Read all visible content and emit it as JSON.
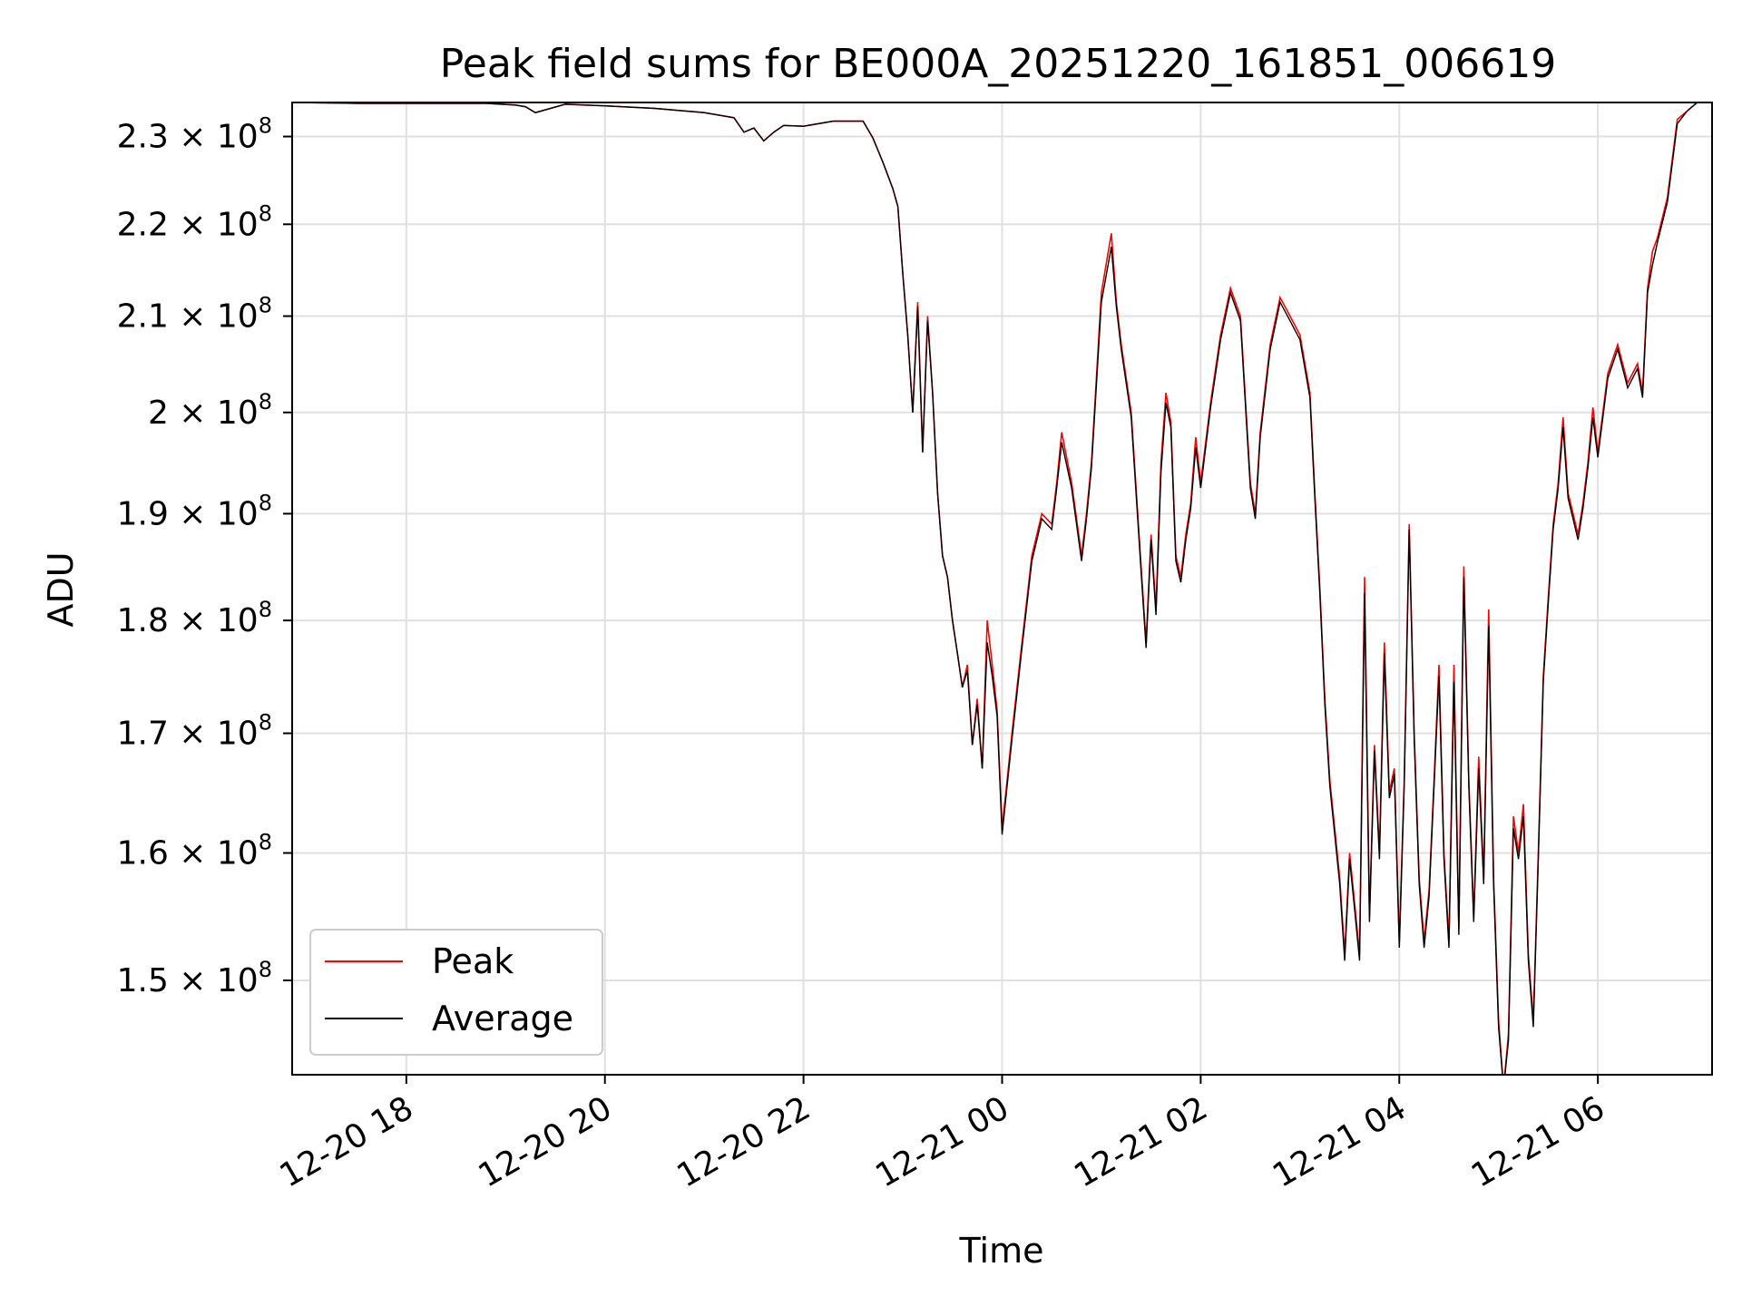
{
  "chart_data": {
    "type": "line",
    "title": "Peak field sums for BE000A_20251220_161851_006619",
    "xlabel": "Time",
    "ylabel": "ADU",
    "yscale": "log",
    "grid": true,
    "legend_position": "lower-left",
    "colors": {
      "peak": "#ff0000",
      "average": "#000000",
      "grid": "#e0e0e0"
    },
    "xlim": [
      16.85,
      31.15
    ],
    "ylim": [
      143000000,
      234000000
    ],
    "x_ticks": [
      {
        "value": 18,
        "label": "12-20 18"
      },
      {
        "value": 20,
        "label": "12-20 20"
      },
      {
        "value": 22,
        "label": "12-20 22"
      },
      {
        "value": 24,
        "label": "12-21 00"
      },
      {
        "value": 26,
        "label": "12-21 02"
      },
      {
        "value": 28,
        "label": "12-21 04"
      },
      {
        "value": 30,
        "label": "12-21 06"
      }
    ],
    "y_ticks": [
      {
        "value": 150000000,
        "mantissa": "1.5",
        "exp": "8"
      },
      {
        "value": 160000000,
        "mantissa": "1.6",
        "exp": "8"
      },
      {
        "value": 170000000,
        "mantissa": "1.7",
        "exp": "8"
      },
      {
        "value": 180000000,
        "mantissa": "1.8",
        "exp": "8"
      },
      {
        "value": 190000000,
        "mantissa": "1.9",
        "exp": "8"
      },
      {
        "value": 200000000,
        "mantissa": "2",
        "exp": "8"
      },
      {
        "value": 210000000,
        "mantissa": "2.1",
        "exp": "8"
      },
      {
        "value": 220000000,
        "mantissa": "2.2",
        "exp": "8"
      },
      {
        "value": 230000000,
        "mantissa": "2.3",
        "exp": "8"
      }
    ],
    "x_units": "hours since 2025-12-20 00:00",
    "series": [
      {
        "name": "Peak",
        "x": [
          16.85,
          17.5,
          18.2,
          18.8,
          19.1,
          19.2,
          19.3,
          19.6,
          20.0,
          20.5,
          21.0,
          21.3,
          21.4,
          21.5,
          21.6,
          21.7,
          21.8,
          22.0,
          22.3,
          22.6,
          22.7,
          22.8,
          22.9,
          22.95,
          23.0,
          23.05,
          23.1,
          23.15,
          23.2,
          23.25,
          23.3,
          23.35,
          23.4,
          23.45,
          23.5,
          23.55,
          23.6,
          23.65,
          23.7,
          23.75,
          23.8,
          23.85,
          23.9,
          23.95,
          24.0,
          24.05,
          24.1,
          24.2,
          24.3,
          24.4,
          24.5,
          24.55,
          24.6,
          24.7,
          24.8,
          24.85,
          24.9,
          25.0,
          25.1,
          25.15,
          25.2,
          25.3,
          25.4,
          25.45,
          25.5,
          25.55,
          25.6,
          25.65,
          25.7,
          25.75,
          25.8,
          25.85,
          25.9,
          25.95,
          26.0,
          26.1,
          26.2,
          26.3,
          26.4,
          26.5,
          26.55,
          26.6,
          26.7,
          26.8,
          26.9,
          27.0,
          27.1,
          27.15,
          27.2,
          27.25,
          27.3,
          27.35,
          27.4,
          27.45,
          27.5,
          27.55,
          27.6,
          27.65,
          27.7,
          27.75,
          27.8,
          27.85,
          27.9,
          27.95,
          28.0,
          28.05,
          28.1,
          28.15,
          28.2,
          28.25,
          28.3,
          28.35,
          28.4,
          28.45,
          28.5,
          28.55,
          28.6,
          28.65,
          28.7,
          28.75,
          28.8,
          28.85,
          28.9,
          28.95,
          29.0,
          29.05,
          29.1,
          29.15,
          29.2,
          29.25,
          29.3,
          29.35,
          29.4,
          29.45,
          29.5,
          29.55,
          29.6,
          29.65,
          29.7,
          29.75,
          29.8,
          29.85,
          29.9,
          29.95,
          30.0,
          30.1,
          30.2,
          30.3,
          30.4,
          30.45,
          30.5,
          30.55,
          30.6,
          30.7,
          30.8,
          30.9,
          31.0,
          31.15
        ],
        "values": [
          234000000,
          233900000,
          233900000,
          233900000,
          233700000,
          233500000,
          232800000,
          233800000,
          233600000,
          233300000,
          232800000,
          232200000,
          230500000,
          231000000,
          229500000,
          230500000,
          231300000,
          231200000,
          231800000,
          231800000,
          229800000,
          227000000,
          224000000,
          222000000,
          214500000,
          208000000,
          200000000,
          211500000,
          196000000,
          210000000,
          202000000,
          192000000,
          186000000,
          184000000,
          180000000,
          177000000,
          174000000,
          176000000,
          169000000,
          173000000,
          167000000,
          180000000,
          176000000,
          172000000,
          162000000,
          166000000,
          170000000,
          178000000,
          186000000,
          190000000,
          189000000,
          193000000,
          198000000,
          193000000,
          186000000,
          190000000,
          195000000,
          212500000,
          219000000,
          211500000,
          207000000,
          200000000,
          185000000,
          178000000,
          188000000,
          181000000,
          195000000,
          202000000,
          199000000,
          186000000,
          184000000,
          188000000,
          191000000,
          197500000,
          193000000,
          201000000,
          208000000,
          213000000,
          210000000,
          193000000,
          190000000,
          198000000,
          207000000,
          212000000,
          210000000,
          208000000,
          202000000,
          192000000,
          183000000,
          173000000,
          166000000,
          162000000,
          158000000,
          152000000,
          160000000,
          156000000,
          152000000,
          184000000,
          155000000,
          169000000,
          160000000,
          178000000,
          165000000,
          167000000,
          153000000,
          166000000,
          189000000,
          170000000,
          158000000,
          153000000,
          157000000,
          166000000,
          176000000,
          160000000,
          153000000,
          176000000,
          154000000,
          185000000,
          166000000,
          155000000,
          168000000,
          158000000,
          181000000,
          158000000,
          147000000,
          142000000,
          146000000,
          163000000,
          160000000,
          164000000,
          152000000,
          147000000,
          160000000,
          175000000,
          182000000,
          189000000,
          193000000,
          199500000,
          192000000,
          190000000,
          188000000,
          191000000,
          195000000,
          200500000,
          196000000,
          204000000,
          207000000,
          203000000,
          205000000,
          202000000,
          213000000,
          217000000,
          218500000,
          223000000,
          232000000,
          233000000,
          234000000,
          235000000
        ]
      },
      {
        "name": "Average",
        "x": [
          16.85,
          17.5,
          18.2,
          18.8,
          19.1,
          19.2,
          19.3,
          19.6,
          20.0,
          20.5,
          21.0,
          21.3,
          21.4,
          21.5,
          21.6,
          21.7,
          21.8,
          22.0,
          22.3,
          22.6,
          22.7,
          22.8,
          22.9,
          22.95,
          23.0,
          23.05,
          23.1,
          23.15,
          23.2,
          23.25,
          23.3,
          23.35,
          23.4,
          23.45,
          23.5,
          23.55,
          23.6,
          23.65,
          23.7,
          23.75,
          23.8,
          23.85,
          23.9,
          23.95,
          24.0,
          24.05,
          24.1,
          24.2,
          24.3,
          24.4,
          24.5,
          24.55,
          24.6,
          24.7,
          24.8,
          24.85,
          24.9,
          25.0,
          25.1,
          25.15,
          25.2,
          25.3,
          25.4,
          25.45,
          25.5,
          25.55,
          25.6,
          25.65,
          25.7,
          25.75,
          25.8,
          25.85,
          25.9,
          25.95,
          26.0,
          26.1,
          26.2,
          26.3,
          26.4,
          26.5,
          26.55,
          26.6,
          26.7,
          26.8,
          26.9,
          27.0,
          27.1,
          27.15,
          27.2,
          27.25,
          27.3,
          27.35,
          27.4,
          27.45,
          27.5,
          27.55,
          27.6,
          27.65,
          27.7,
          27.75,
          27.8,
          27.85,
          27.9,
          27.95,
          28.0,
          28.05,
          28.1,
          28.15,
          28.2,
          28.25,
          28.3,
          28.35,
          28.4,
          28.45,
          28.5,
          28.55,
          28.6,
          28.65,
          28.7,
          28.75,
          28.8,
          28.85,
          28.9,
          28.95,
          29.0,
          29.05,
          29.1,
          29.15,
          29.2,
          29.25,
          29.3,
          29.35,
          29.4,
          29.45,
          29.5,
          29.55,
          29.6,
          29.65,
          29.7,
          29.75,
          29.8,
          29.85,
          29.9,
          29.95,
          30.0,
          30.1,
          30.2,
          30.3,
          30.4,
          30.45,
          30.5,
          30.55,
          30.6,
          30.7,
          30.8,
          30.9,
          31.0,
          31.15
        ],
        "values": [
          234000000,
          233900000,
          233900000,
          233900000,
          233700000,
          233500000,
          232800000,
          233800000,
          233600000,
          233300000,
          232800000,
          232200000,
          230500000,
          231000000,
          229500000,
          230500000,
          231300000,
          231200000,
          231800000,
          231800000,
          229800000,
          227000000,
          224000000,
          222000000,
          214500000,
          208000000,
          200000000,
          211000000,
          196000000,
          209500000,
          202000000,
          192000000,
          186000000,
          184000000,
          180000000,
          177000000,
          174000000,
          175500000,
          169000000,
          172500000,
          167000000,
          178000000,
          175000000,
          171500000,
          161500000,
          165500000,
          169500000,
          177500000,
          185500000,
          189500000,
          188500000,
          192500000,
          197000000,
          192500000,
          185500000,
          189500000,
          194500000,
          211500000,
          217500000,
          211000000,
          206500000,
          199500000,
          184500000,
          177500000,
          187500000,
          180500000,
          194000000,
          201000000,
          198500000,
          185500000,
          183500000,
          187500000,
          190500000,
          196500000,
          192500000,
          200500000,
          207500000,
          212500000,
          209500000,
          192500000,
          189500000,
          197500000,
          206500000,
          211500000,
          209500000,
          207500000,
          201500000,
          191500000,
          182500000,
          172500000,
          165500000,
          161500000,
          157500000,
          151500000,
          159500000,
          155500000,
          151500000,
          182500000,
          154500000,
          168500000,
          159500000,
          177000000,
          164500000,
          166500000,
          152500000,
          165500000,
          188500000,
          169500000,
          157500000,
          152500000,
          156500000,
          165500000,
          175000000,
          159500000,
          152500000,
          174500000,
          153500000,
          184000000,
          165500000,
          154500000,
          167000000,
          157500000,
          179500000,
          157500000,
          146500000,
          142000000,
          145500000,
          162000000,
          159500000,
          163000000,
          151500000,
          146500000,
          159500000,
          174500000,
          181500000,
          188500000,
          192500000,
          198500000,
          191500000,
          189500000,
          187500000,
          190500000,
          194500000,
          199500000,
          195500000,
          203500000,
          206500000,
          202500000,
          204500000,
          201500000,
          212500000,
          215500000,
          218000000,
          222500000,
          231500000,
          233000000,
          234000000,
          235000000
        ]
      }
    ]
  }
}
